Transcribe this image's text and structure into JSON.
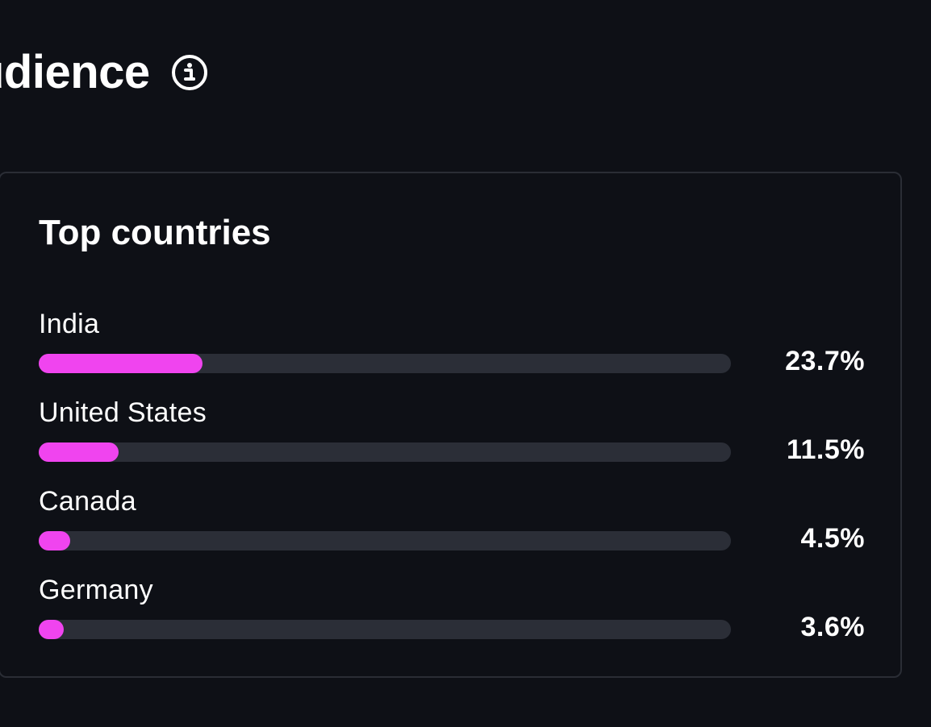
{
  "header": {
    "title": "udience",
    "info_icon": "info-circle-icon"
  },
  "card": {
    "title": "Top countries",
    "accent_color": "#f044ef",
    "track_color": "#2b2e37",
    "countries": [
      {
        "name": "India",
        "value_label": "23.7%",
        "percent": 23.7
      },
      {
        "name": "United States",
        "value_label": "11.5%",
        "percent": 11.5
      },
      {
        "name": "Canada",
        "value_label": "4.5%",
        "percent": 4.5
      },
      {
        "name": "Germany",
        "value_label": "3.6%",
        "percent": 3.6
      }
    ]
  }
}
